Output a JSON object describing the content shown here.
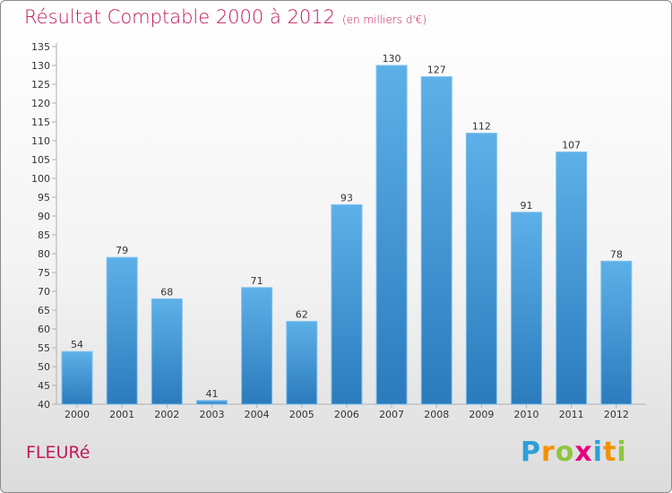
{
  "title": {
    "main": "Résultat Comptable 2000 à 2012",
    "unit": "(en milliers d'€)"
  },
  "commune": "FLEURé",
  "logo": {
    "letters": [
      "P",
      "r",
      "o",
      "x",
      "i",
      "t",
      "i"
    ],
    "colors": [
      "#2b9fd8",
      "#f39200",
      "#8dc63f",
      "#e6007e",
      "#2b9fd8",
      "#f39200",
      "#8dc63f"
    ]
  },
  "colors": {
    "title": "#c2185b",
    "bar_top": "#5eb0e8",
    "bar_bottom": "#2b7bbd"
  },
  "chart_data": {
    "type": "bar",
    "title": "Résultat Comptable 2000 à 2012",
    "subtitle": "(en milliers d'€)",
    "xlabel": "",
    "ylabel": "",
    "categories": [
      "2000",
      "2001",
      "2002",
      "2003",
      "2004",
      "2005",
      "2006",
      "2007",
      "2008",
      "2009",
      "2010",
      "2011",
      "2012"
    ],
    "values": [
      54,
      79,
      68,
      41,
      71,
      62,
      93,
      130,
      127,
      112,
      91,
      107,
      78
    ],
    "ylim": [
      40,
      135
    ],
    "ytick_step": 5,
    "grid": false,
    "data_labels": true
  }
}
